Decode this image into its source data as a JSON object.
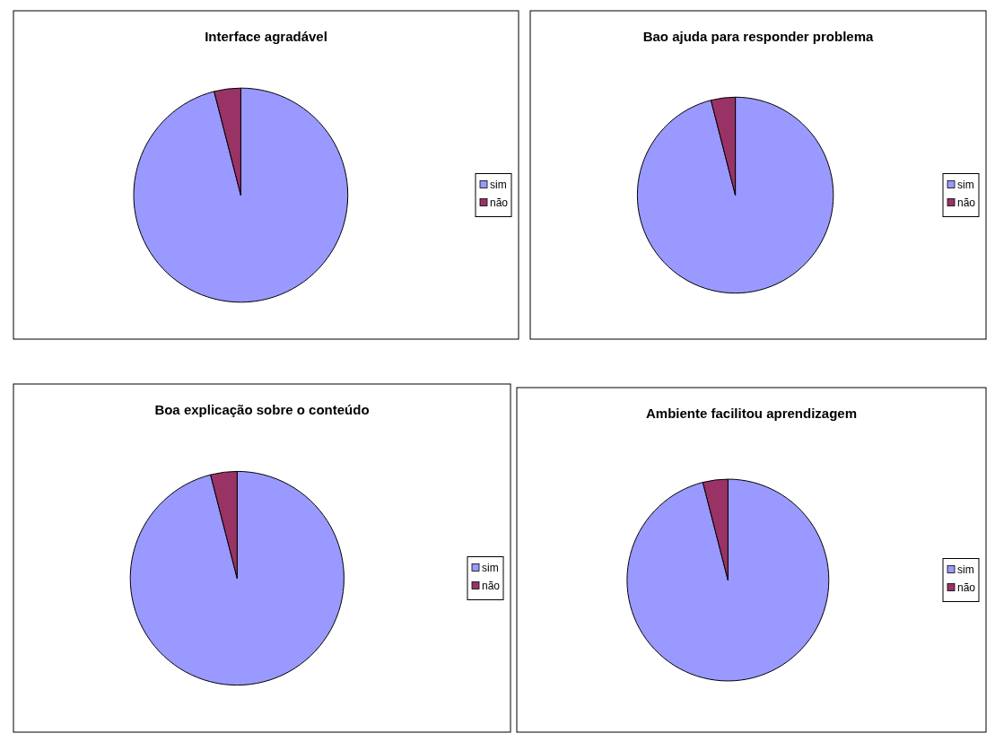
{
  "chart_data": [
    {
      "type": "pie",
      "title": "Interface agradável",
      "categories": [
        "sim",
        "não"
      ],
      "values": [
        96,
        4
      ],
      "colors": [
        "#9999ff",
        "#993366"
      ],
      "legend": "right"
    },
    {
      "type": "pie",
      "title": "Bao ajuda para responder problema",
      "categories": [
        "sim",
        "não"
      ],
      "values": [
        96,
        4
      ],
      "colors": [
        "#9999ff",
        "#993366"
      ],
      "legend": "right"
    },
    {
      "type": "pie",
      "title": "Boa explicação sobre o conteúdo",
      "categories": [
        "sim",
        "não"
      ],
      "values": [
        96,
        4
      ],
      "colors": [
        "#9999ff",
        "#993366"
      ],
      "legend": "right"
    },
    {
      "type": "pie",
      "title": "Ambiente facilitou aprendizagem",
      "categories": [
        "sim",
        "não"
      ],
      "values": [
        96,
        4
      ],
      "colors": [
        "#9999ff",
        "#993366"
      ],
      "legend": "right"
    }
  ]
}
